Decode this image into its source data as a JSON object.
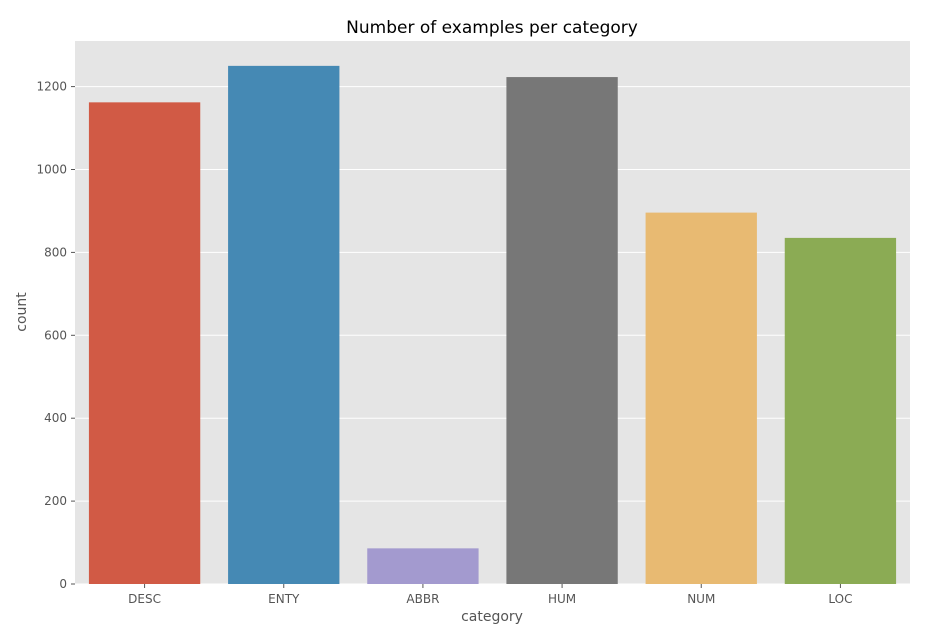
{
  "chart_data": {
    "type": "bar",
    "title": "Number of examples per category",
    "xlabel": "category",
    "ylabel": "count",
    "categories": [
      "DESC",
      "ENTY",
      "ABBR",
      "HUM",
      "NUM",
      "LOC"
    ],
    "values": [
      1162,
      1250,
      86,
      1223,
      896,
      835
    ],
    "colors": [
      "#D15A45",
      "#4589B4",
      "#A39ACF",
      "#777777",
      "#E8BA72",
      "#8BAB54"
    ],
    "ylim": [
      0,
      1310
    ],
    "yticks": [
      0,
      200,
      400,
      600,
      800,
      1000,
      1200
    ],
    "grid": true,
    "legend": false,
    "style": {
      "panel_background": "#E5E5E5",
      "grid_color": "#FFFFFF",
      "tick_label_color": "#555555",
      "axis_label_color": "#555555",
      "title_color": "#000000"
    }
  }
}
